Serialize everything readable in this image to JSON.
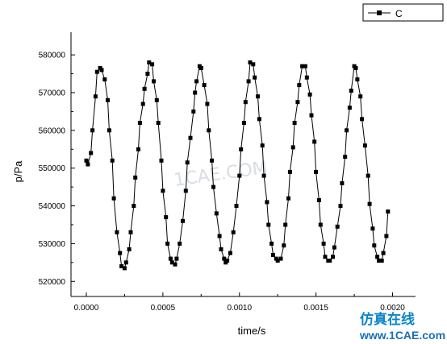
{
  "chart_data": {
    "type": "line",
    "xlabel": "time/s",
    "ylabel": "p/Pa",
    "xlim": [
      -0.0001,
      0.00215
    ],
    "ylim": [
      516000,
      586000
    ],
    "x_ticks": [
      0.0,
      0.0005,
      0.001,
      0.0015,
      0.002
    ],
    "x_tick_labels": [
      "0.0000",
      "0.0005",
      "0.0010",
      "0.0015",
      "0.0020"
    ],
    "y_ticks": [
      520000,
      530000,
      540000,
      550000,
      560000,
      570000,
      580000
    ],
    "y_tick_labels": [
      "520000",
      "530000",
      "540000",
      "550000",
      "560000",
      "570000",
      "580000"
    ],
    "legend": {
      "position": "top-right",
      "entries": [
        "C"
      ]
    },
    "grid": false,
    "series": [
      {
        "name": "C",
        "marker": "square",
        "points": [
          [
            0.0,
            552000
          ],
          [
            1e-05,
            551000
          ],
          [
            3e-05,
            554000
          ],
          [
            4e-05,
            560000
          ],
          [
            6e-05,
            569000
          ],
          [
            7e-05,
            575500
          ],
          [
            9e-05,
            576500
          ],
          [
            0.0001,
            576000
          ],
          [
            0.00012,
            573500
          ],
          [
            0.00014,
            568000
          ],
          [
            0.00015,
            560000
          ],
          [
            0.00017,
            552000
          ],
          [
            0.00018,
            542000
          ],
          [
            0.0002,
            533000
          ],
          [
            0.00022,
            527500
          ],
          [
            0.00023,
            524000
          ],
          [
            0.00025,
            523500
          ],
          [
            0.00026,
            525000
          ],
          [
            0.00028,
            528500
          ],
          [
            0.00029,
            533000
          ],
          [
            0.00031,
            540000
          ],
          [
            0.00032,
            547500
          ],
          [
            0.00034,
            555000
          ],
          [
            0.00035,
            562000
          ],
          [
            0.00037,
            567000
          ],
          [
            0.00038,
            571000
          ],
          [
            0.0004,
            575000
          ],
          [
            0.00041,
            578000
          ],
          [
            0.00043,
            577500
          ],
          [
            0.00044,
            573000
          ],
          [
            0.00046,
            568000
          ],
          [
            0.00047,
            562000
          ],
          [
            0.00049,
            552000
          ],
          [
            0.0005,
            544000
          ],
          [
            0.00052,
            537000
          ],
          [
            0.00053,
            530000
          ],
          [
            0.00055,
            526000
          ],
          [
            0.00056,
            525000
          ],
          [
            0.00058,
            524500
          ],
          [
            0.00059,
            526000
          ],
          [
            0.00061,
            530000
          ],
          [
            0.00063,
            536000
          ],
          [
            0.00065,
            544000
          ],
          [
            0.00066,
            551500
          ],
          [
            0.00068,
            558000
          ],
          [
            0.0007,
            565000
          ],
          [
            0.00071,
            570000
          ],
          [
            0.00072,
            573000
          ],
          [
            0.00074,
            577000
          ],
          [
            0.00075,
            576500
          ],
          [
            0.00077,
            572000
          ],
          [
            0.00079,
            567000
          ],
          [
            0.0008,
            560000
          ],
          [
            0.00082,
            552000
          ],
          [
            0.00083,
            545000
          ],
          [
            0.00085,
            538000
          ],
          [
            0.00087,
            532000
          ],
          [
            0.00088,
            528500
          ],
          [
            0.0009,
            526000
          ],
          [
            0.00091,
            525000
          ],
          [
            0.00092,
            525500
          ],
          [
            0.00094,
            527500
          ],
          [
            0.00096,
            533000
          ],
          [
            0.00098,
            540000
          ],
          [
            0.001,
            548000
          ],
          [
            0.00101,
            555000
          ],
          [
            0.00103,
            562000
          ],
          [
            0.00104,
            567500
          ],
          [
            0.00106,
            573000
          ],
          [
            0.00107,
            578000
          ],
          [
            0.00109,
            577500
          ],
          [
            0.0011,
            574000
          ],
          [
            0.00112,
            569000
          ],
          [
            0.00113,
            563000
          ],
          [
            0.00115,
            556000
          ],
          [
            0.00116,
            548000
          ],
          [
            0.00118,
            541000
          ],
          [
            0.00119,
            535000
          ],
          [
            0.00121,
            530000
          ],
          [
            0.00122,
            527000
          ],
          [
            0.00124,
            526000
          ],
          [
            0.00125,
            525500
          ],
          [
            0.00127,
            526000
          ],
          [
            0.00129,
            529500
          ],
          [
            0.0013,
            535000
          ],
          [
            0.00132,
            542000
          ],
          [
            0.00133,
            549000
          ],
          [
            0.00135,
            555500
          ],
          [
            0.00136,
            562000
          ],
          [
            0.00138,
            567500
          ],
          [
            0.00139,
            572000
          ],
          [
            0.00141,
            577000
          ],
          [
            0.00143,
            577000
          ],
          [
            0.00144,
            574000
          ],
          [
            0.00146,
            569500
          ],
          [
            0.00147,
            564000
          ],
          [
            0.00149,
            557000
          ],
          [
            0.0015,
            549000
          ],
          [
            0.00152,
            541500
          ],
          [
            0.00153,
            535000
          ],
          [
            0.00155,
            530000
          ],
          [
            0.00156,
            526500
          ],
          [
            0.00158,
            525500
          ],
          [
            0.00159,
            525500
          ],
          [
            0.00161,
            526500
          ],
          [
            0.00162,
            529000
          ],
          [
            0.00164,
            534500
          ],
          [
            0.00166,
            540000
          ],
          [
            0.00167,
            546000
          ],
          [
            0.00169,
            553000
          ],
          [
            0.0017,
            560000
          ],
          [
            0.00172,
            566000
          ],
          [
            0.00173,
            570500
          ],
          [
            0.00175,
            577000
          ],
          [
            0.00176,
            576500
          ],
          [
            0.00177,
            573500
          ],
          [
            0.00179,
            569000
          ],
          [
            0.0018,
            563000
          ],
          [
            0.00182,
            556000
          ],
          [
            0.00184,
            548000
          ],
          [
            0.00185,
            540500
          ],
          [
            0.00187,
            534000
          ],
          [
            0.00188,
            529500
          ],
          [
            0.0019,
            526500
          ],
          [
            0.00191,
            525500
          ],
          [
            0.00193,
            525500
          ],
          [
            0.00194,
            527500
          ],
          [
            0.00196,
            532000
          ],
          [
            0.00197,
            538500
          ]
        ]
      }
    ]
  },
  "watermark": {
    "text": "1CAE.COM"
  },
  "logo": {
    "cn_text": "仿真在线",
    "url_text": "www.1CAE.com"
  }
}
